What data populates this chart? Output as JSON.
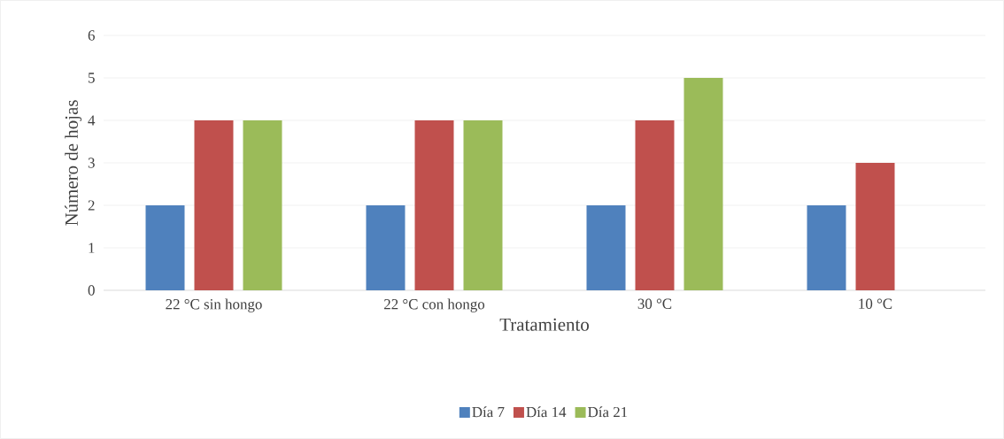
{
  "chart_data": {
    "type": "bar",
    "xlabel": "Tratamiento",
    "ylabel": "Número de hojas",
    "categories": [
      "22 °C sin hongo",
      "22 °C con hongo",
      "30 °C",
      "10 °C"
    ],
    "series": [
      {
        "name": "Día 7",
        "color": "#4f81bd",
        "values": [
          2,
          2,
          2,
          2
        ]
      },
      {
        "name": "Día 14",
        "color": "#c0504d",
        "values": [
          4,
          4,
          4,
          3
        ]
      },
      {
        "name": "Día 21",
        "color": "#9bbb59",
        "values": [
          4,
          4,
          5,
          null
        ]
      }
    ],
    "ylim": [
      0,
      6
    ],
    "yticks": [
      0,
      1,
      2,
      3,
      4,
      5,
      6
    ],
    "grid": "y",
    "legend": "bottom"
  }
}
